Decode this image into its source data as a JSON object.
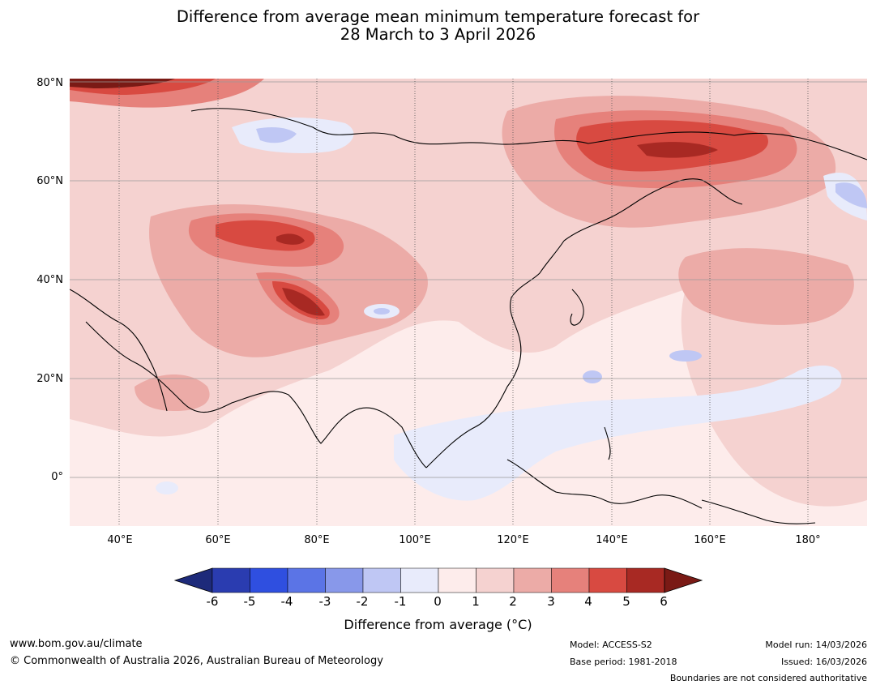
{
  "title": {
    "line1": "Difference from average mean minimum temperature forecast for",
    "line2": "28 March to 3 April 2026"
  },
  "axes": {
    "lat_labels": [
      "80°N",
      "60°N",
      "40°N",
      "20°N",
      "0°"
    ],
    "lon_labels": [
      "40°E",
      "60°E",
      "80°E",
      "100°E",
      "120°E",
      "140°E",
      "160°E",
      "180°"
    ]
  },
  "colorbar": {
    "ticks": [
      "-6",
      "-5",
      "-4",
      "-3",
      "-2",
      "-1",
      "0",
      "1",
      "2",
      "3",
      "4",
      "5",
      "6"
    ],
    "colors": [
      "#1d2a7a",
      "#2a3cb0",
      "#2f4fe0",
      "#5b74e6",
      "#8898ea",
      "#bfc7f4",
      "#e8ebfb",
      "#fdeceb",
      "#f5d2d0",
      "#ecaba7",
      "#e6817b",
      "#d84a41",
      "#a82923",
      "#7a1a15"
    ],
    "title": "Difference from average (°C)"
  },
  "footer": {
    "website": "www.bom.gov.au/climate",
    "copyright": "© Commonwealth of Australia 2026, Australian Bureau of Meteorology",
    "model": "Model: ACCESS-S2",
    "base_period": "Base period: 1981-2018",
    "model_run": "Model run: 14/03/2026",
    "issued": "Issued: 16/03/2026",
    "disclaimer": "Boundaries are not considered authoritative"
  }
}
